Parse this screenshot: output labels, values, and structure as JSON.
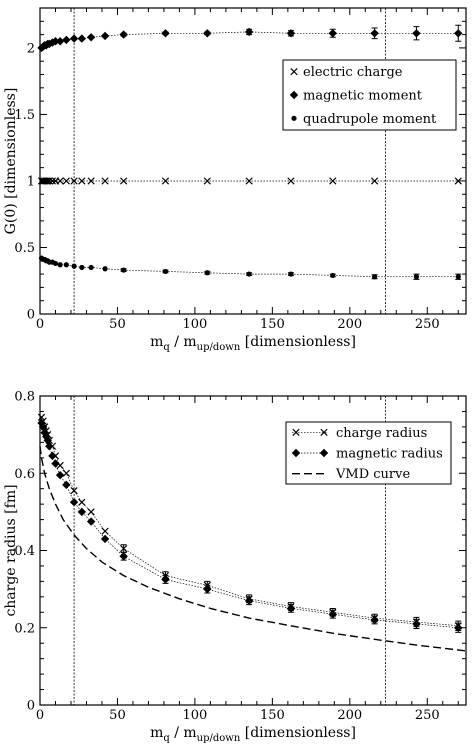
{
  "chart_data": [
    {
      "type": "scatter",
      "xlabel_main": "m",
      "xlabel_sub1": "q",
      "xlabel_mid": " / m",
      "xlabel_sub2": "up/down",
      "xlabel_tail": "  [dimensionless]",
      "ylabel": "G(0)   [dimensionless]",
      "xlim": [
        0,
        275
      ],
      "ylim": [
        0,
        2.3
      ],
      "xticks": [
        "0",
        "50",
        "100",
        "150",
        "200",
        "250"
      ],
      "xtick_values": [
        0,
        50,
        100,
        150,
        200,
        250
      ],
      "yticks": [
        "0",
        "0.5",
        "1",
        "1.5",
        "2"
      ],
      "ytick_values": [
        0,
        0.5,
        1,
        1.5,
        2
      ],
      "vlines": [
        22,
        223
      ],
      "legend": "top-right",
      "series": [
        {
          "name": "electric charge",
          "marker": "cross",
          "x": [
            1,
            2,
            3,
            4,
            5,
            6,
            8,
            10,
            13,
            17,
            22,
            27,
            33,
            42,
            54,
            81,
            108,
            135,
            162,
            189,
            216,
            270
          ],
          "y": [
            1,
            1,
            1,
            1,
            1,
            1,
            1,
            1,
            1,
            1,
            1,
            1,
            1,
            1,
            1,
            1,
            1,
            1,
            1,
            1,
            1,
            1
          ],
          "err": []
        },
        {
          "name": "magnetic moment",
          "marker": "diamond",
          "x": [
            1,
            2,
            3,
            4,
            5,
            6,
            8,
            10,
            13,
            17,
            22,
            27,
            33,
            42,
            54,
            81,
            108,
            135,
            162,
            189,
            216,
            243,
            270
          ],
          "y": [
            2.0,
            2.01,
            2.02,
            2.02,
            2.03,
            2.03,
            2.04,
            2.05,
            2.05,
            2.06,
            2.07,
            2.07,
            2.08,
            2.09,
            2.1,
            2.11,
            2.11,
            2.12,
            2.11,
            2.11,
            2.11,
            2.11,
            2.11
          ],
          "err": [
            0,
            0,
            0,
            0,
            0,
            0,
            0,
            0,
            0,
            0,
            0,
            0,
            0,
            0,
            0.01,
            0.01,
            0.01,
            0.02,
            0.02,
            0.03,
            0.04,
            0.05,
            0.06
          ]
        },
        {
          "name": "quadrupole moment",
          "marker": "dot",
          "x": [
            1,
            2,
            3,
            4,
            5,
            6,
            8,
            10,
            13,
            17,
            22,
            27,
            33,
            42,
            54,
            81,
            108,
            135,
            162,
            189,
            216,
            243,
            270
          ],
          "y": [
            0.42,
            0.41,
            0.41,
            0.4,
            0.4,
            0.39,
            0.39,
            0.38,
            0.37,
            0.37,
            0.36,
            0.35,
            0.35,
            0.34,
            0.33,
            0.32,
            0.31,
            0.3,
            0.3,
            0.29,
            0.28,
            0.28,
            0.28
          ],
          "err": [
            0,
            0,
            0,
            0,
            0,
            0,
            0,
            0,
            0,
            0,
            0,
            0,
            0,
            0,
            0.01,
            0.01,
            0.01,
            0.01,
            0.01,
            0.01,
            0.015,
            0.02,
            0.02
          ]
        }
      ]
    },
    {
      "type": "scatter",
      "xlabel_main": "m",
      "xlabel_sub1": "q",
      "xlabel_mid": " / m",
      "xlabel_sub2": "up/down",
      "xlabel_tail": "  [dimensionless]",
      "ylabel": "charge radius   [fm]",
      "xlim": [
        0,
        275
      ],
      "ylim": [
        0,
        0.8
      ],
      "xticks": [
        "0",
        "50",
        "100",
        "150",
        "200",
        "250"
      ],
      "xtick_values": [
        0,
        50,
        100,
        150,
        200,
        250
      ],
      "yticks": [
        "0",
        "0.2",
        "0.4",
        "0.6",
        "0.8"
      ],
      "ytick_values": [
        0,
        0.2,
        0.4,
        0.6,
        0.8
      ],
      "vlines": [
        22,
        223
      ],
      "legend": "top-right",
      "series": [
        {
          "name": "charge radius",
          "marker": "cross",
          "x": [
            1,
            2,
            3,
            4,
            5,
            6,
            8,
            10,
            13,
            17,
            22,
            27,
            33,
            42,
            54,
            81,
            108,
            135,
            162,
            189,
            216,
            243,
            270
          ],
          "y": [
            0.745,
            0.735,
            0.72,
            0.71,
            0.7,
            0.685,
            0.67,
            0.645,
            0.62,
            0.6,
            0.555,
            0.525,
            0.5,
            0.45,
            0.405,
            0.335,
            0.31,
            0.275,
            0.255,
            0.24,
            0.225,
            0.215,
            0.205
          ],
          "err": [
            0,
            0,
            0,
            0,
            0,
            0,
            0,
            0,
            0,
            0,
            0,
            0,
            0,
            0,
            0.01,
            0.01,
            0.01,
            0.01,
            0.01,
            0.01,
            0.01,
            0.012,
            0.012
          ]
        },
        {
          "name": "magnetic radius",
          "marker": "diamond",
          "x": [
            1,
            2,
            3,
            4,
            5,
            6,
            8,
            10,
            13,
            17,
            22,
            27,
            33,
            42,
            54,
            81,
            108,
            135,
            162,
            189,
            216,
            243,
            270
          ],
          "y": [
            0.73,
            0.72,
            0.705,
            0.695,
            0.685,
            0.67,
            0.645,
            0.625,
            0.595,
            0.57,
            0.525,
            0.5,
            0.475,
            0.43,
            0.385,
            0.325,
            0.3,
            0.27,
            0.25,
            0.235,
            0.22,
            0.21,
            0.2
          ],
          "err": [
            0,
            0,
            0,
            0,
            0,
            0,
            0,
            0,
            0,
            0,
            0,
            0,
            0,
            0,
            0.01,
            0.01,
            0.01,
            0.01,
            0.01,
            0.01,
            0.01,
            0.012,
            0.012
          ]
        },
        {
          "name": "VMD curve",
          "marker": "dashed-line",
          "x": [
            0,
            1,
            3,
            6,
            10,
            15,
            22,
            30,
            40,
            54,
            70,
            90,
            110,
            135,
            162,
            190,
            216,
            243,
            275
          ],
          "y": [
            0.67,
            0.64,
            0.6,
            0.56,
            0.52,
            0.48,
            0.44,
            0.405,
            0.37,
            0.335,
            0.305,
            0.275,
            0.25,
            0.225,
            0.205,
            0.185,
            0.17,
            0.155,
            0.14
          ],
          "err": []
        }
      ]
    }
  ]
}
